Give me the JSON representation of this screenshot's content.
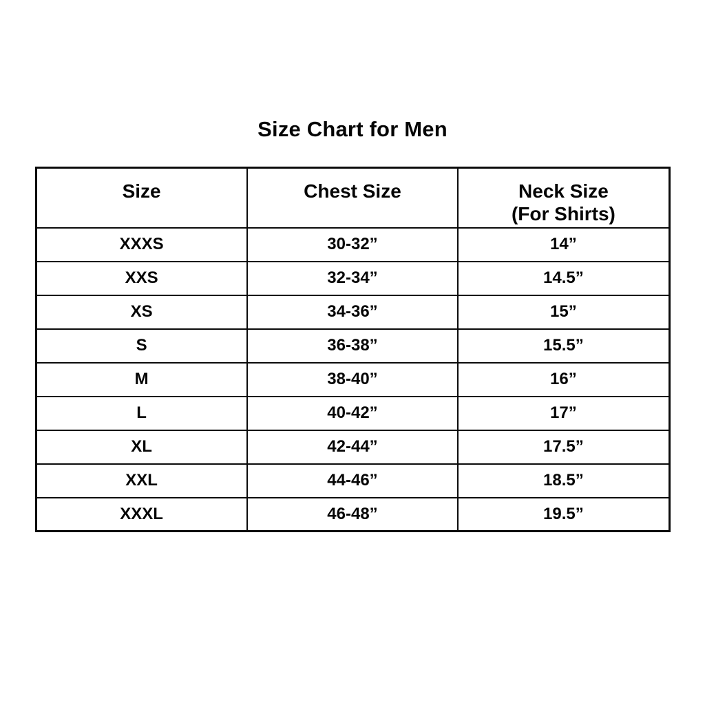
{
  "chart_data": {
    "type": "table",
    "title": "Size Chart for Men",
    "columns": [
      {
        "label": "Size",
        "sub": ""
      },
      {
        "label": "Chest Size",
        "sub": ""
      },
      {
        "label": "Neck Size",
        "sub": "(For Shirts)"
      }
    ],
    "rows": [
      [
        "XXXS",
        "30-32”",
        "14”"
      ],
      [
        "XXS",
        "32-34”",
        "14.5”"
      ],
      [
        "XS",
        "34-36”",
        "15”"
      ],
      [
        "S",
        "36-38”",
        "15.5”"
      ],
      [
        "M",
        "38-40”",
        "16”"
      ],
      [
        "L",
        "40-42”",
        "17”"
      ],
      [
        "XL",
        "42-44”",
        "17.5”"
      ],
      [
        "XXL",
        "44-46”",
        "18.5”"
      ],
      [
        "XXXL",
        "46-48”",
        "19.5”"
      ]
    ],
    "layout": {
      "grid": "on",
      "border_color": "#0a0a0a",
      "background_color": "#ffffff",
      "text_color": "#050505"
    }
  }
}
